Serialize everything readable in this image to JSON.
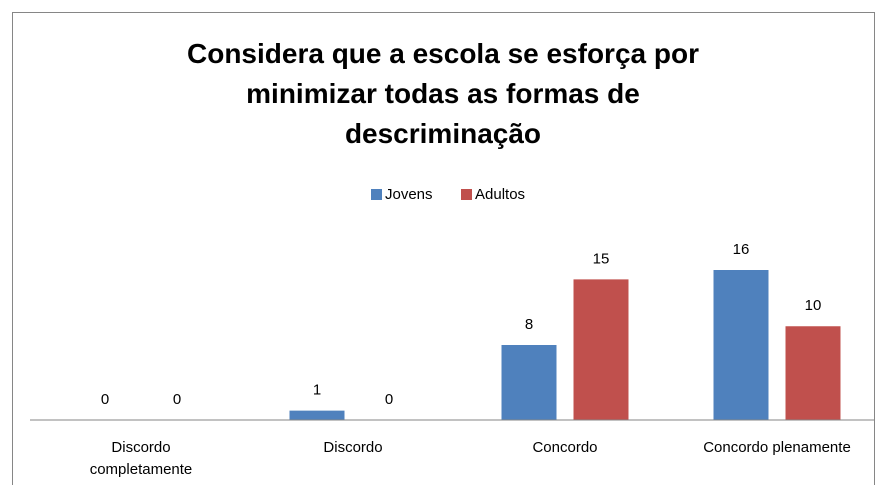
{
  "chart_data": {
    "type": "bar",
    "title": "Considera que a escola se esforça por minimizar todas as formas de descriminação",
    "categories": [
      "Discordo completamente",
      "Discordo",
      "Concordo",
      "Concordo plenamente"
    ],
    "series": [
      {
        "name": "Jovens",
        "color": "#4f81bd",
        "values": [
          0,
          1,
          8,
          16
        ]
      },
      {
        "name": "Adultos",
        "color": "#c0504d",
        "values": [
          0,
          0,
          15,
          10
        ]
      }
    ],
    "ylim": [
      0,
      18
    ],
    "legend": "top"
  }
}
